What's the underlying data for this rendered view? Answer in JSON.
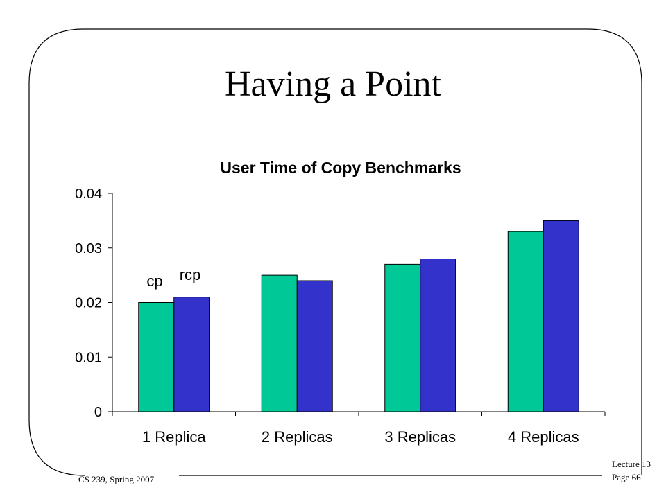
{
  "slide": {
    "title": "Having a Point",
    "course": "CS 239, Spring 2007",
    "lecture": "Lecture 13",
    "page": "Page 66"
  },
  "colors": {
    "cp": "#00C896",
    "rcp": "#3333CC",
    "outline": "#000000"
  },
  "chart_data": {
    "type": "bar",
    "title": "User Time of Copy Benchmarks",
    "xlabel": "",
    "ylabel": "",
    "categories": [
      "1 Replica",
      "2 Replicas",
      "3 Replicas",
      "4 Replicas"
    ],
    "series": [
      {
        "name": "cp",
        "values": [
          0.02,
          0.025,
          0.027,
          0.033
        ]
      },
      {
        "name": "rcp",
        "values": [
          0.021,
          0.024,
          0.028,
          0.035
        ]
      }
    ],
    "ylim": [
      0,
      0.04
    ],
    "yticks": [
      0,
      0.01,
      0.02,
      0.03,
      0.04
    ],
    "ytick_labels": [
      "0",
      "0.01",
      "0.02",
      "0.03",
      "0.04"
    ],
    "grid": false,
    "legend": "annotations above first group"
  }
}
